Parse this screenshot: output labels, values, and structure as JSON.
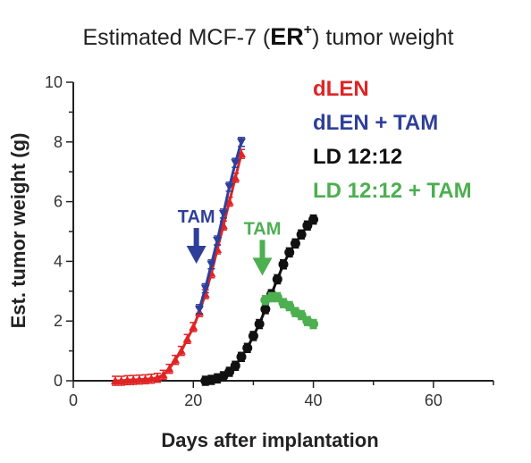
{
  "chart_data": {
    "type": "line",
    "title": {
      "prefix": "Estimated MCF-7 (",
      "emph": "ER",
      "sup": "+",
      "suffix": ") tumor weight"
    },
    "xlabel": "Days after implantation",
    "ylabel": "Est. tumor weight (g)",
    "xlim": [
      0,
      70
    ],
    "ylim": [
      0,
      10
    ],
    "xticks": [
      0,
      20,
      40,
      60
    ],
    "yticks": [
      0,
      2,
      4,
      6,
      8,
      10
    ],
    "grid": false,
    "legend_position": "top-right",
    "series": [
      {
        "name": "dLEN",
        "color": "#e02424",
        "marker": "triangle-up",
        "x": [
          7,
          8,
          9,
          10,
          11,
          12,
          13,
          14,
          15,
          16,
          17,
          18,
          19,
          20,
          21,
          22,
          23,
          24,
          25,
          26,
          27,
          28
        ],
        "y": [
          0,
          0,
          0.02,
          0.03,
          0.04,
          0.05,
          0.07,
          0.1,
          0.2,
          0.4,
          0.7,
          1.0,
          1.4,
          1.8,
          2.3,
          2.9,
          3.6,
          4.4,
          5.2,
          6.0,
          6.8,
          7.6
        ]
      },
      {
        "name": "dLEN + TAM",
        "color": "#2e3f9a",
        "marker": "triangle-down",
        "x": [
          21,
          22,
          23,
          24,
          25,
          26,
          27,
          28
        ],
        "y": [
          2.4,
          3.1,
          3.9,
          4.7,
          5.6,
          6.5,
          7.3,
          8.0
        ]
      },
      {
        "name": "LD 12:12",
        "color": "#111111",
        "marker": "circle",
        "x": [
          22,
          23,
          24,
          25,
          26,
          27,
          28,
          29,
          30,
          31,
          32,
          33,
          34,
          35,
          36,
          37,
          38,
          39,
          40
        ],
        "y": [
          0,
          0.03,
          0.08,
          0.15,
          0.3,
          0.5,
          0.8,
          1.1,
          1.5,
          1.9,
          2.4,
          2.9,
          3.4,
          3.9,
          4.3,
          4.6,
          4.9,
          5.2,
          5.4
        ]
      },
      {
        "name": "LD 12:12 + TAM",
        "color": "#4caf50",
        "marker": "circle",
        "x": [
          32,
          33,
          34,
          35,
          36,
          37,
          38,
          39,
          40
        ],
        "y": [
          2.7,
          2.8,
          2.8,
          2.6,
          2.5,
          2.3,
          2.2,
          2.0,
          1.9
        ]
      }
    ],
    "annotations": [
      {
        "text": "TAM",
        "x": 20.5,
        "y": 4.1,
        "color": "#2e3f9a"
      },
      {
        "text": "TAM",
        "x": 31.5,
        "y": 3.7,
        "color": "#4caf50"
      }
    ]
  }
}
